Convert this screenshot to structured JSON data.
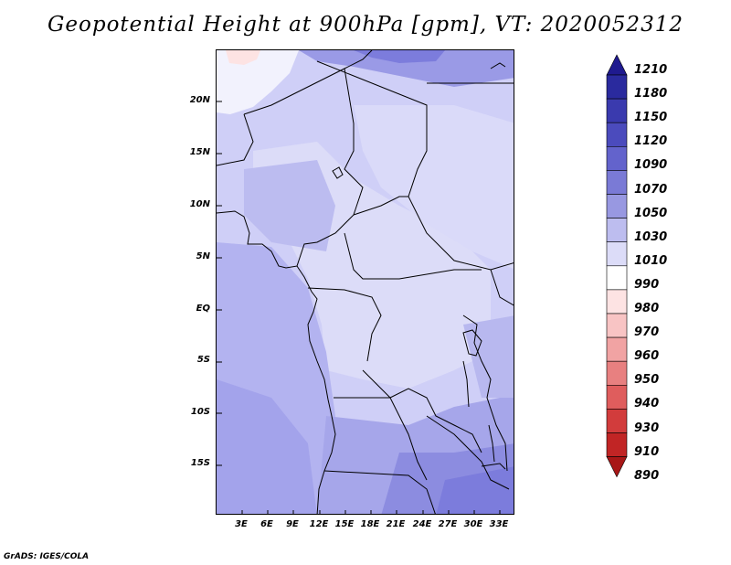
{
  "title": "Geopotential Height at 900hPa [gpm], VT: 2020052312",
  "credit": "GrADS: IGES/COLA",
  "map": {
    "lat_labels": [
      "20N",
      "15N",
      "10N",
      "5N",
      "EQ",
      "5S",
      "10S",
      "15S"
    ],
    "lon_labels": [
      "3E",
      "6E",
      "9E",
      "12E",
      "15E",
      "18E",
      "21E",
      "24E",
      "27E",
      "30E",
      "33E"
    ]
  },
  "colorbar": {
    "labels": [
      "1210",
      "1180",
      "1150",
      "1120",
      "1090",
      "1070",
      "1050",
      "1030",
      "1010",
      "990",
      "980",
      "970",
      "960",
      "950",
      "940",
      "930",
      "910",
      "890"
    ],
    "colors": [
      "#1f1a8f",
      "#2a2a9e",
      "#3a3aae",
      "#4b4bbd",
      "#6363cc",
      "#7a7ad6",
      "#9898e1",
      "#bdbdef",
      "#dcdcf8",
      "#ffffff",
      "#fde3e3",
      "#f8c4c4",
      "#f1a3a3",
      "#e88080",
      "#df5d5d",
      "#d23c3c",
      "#c12525",
      "#a81717"
    ]
  },
  "fill_colors": {
    "ocean": "#b3b3f0",
    "land_low": "#dadaf9",
    "land_mid": "#c9c9f5",
    "deep": "#7c7cdc",
    "low_red": "#fde3e3"
  }
}
